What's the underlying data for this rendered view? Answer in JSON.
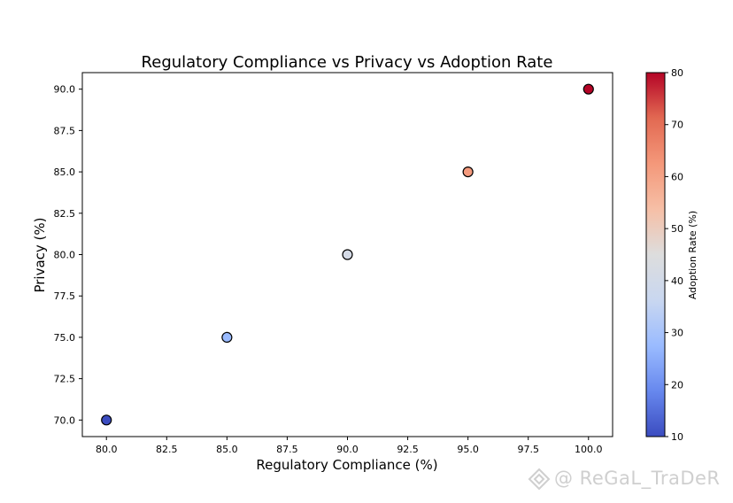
{
  "chart_data": {
    "type": "scatter",
    "title": "Regulatory Compliance vs Privacy vs Adoption Rate",
    "xlabel": "Regulatory Compliance (%)",
    "ylabel": "Privacy (%)",
    "xlim": [
      79.0,
      101.0
    ],
    "ylim": [
      69.0,
      91.0
    ],
    "xticks": [
      80.0,
      82.5,
      85.0,
      87.5,
      90.0,
      92.5,
      95.0,
      97.5,
      100.0
    ],
    "yticks": [
      70.0,
      72.5,
      75.0,
      77.5,
      80.0,
      82.5,
      85.0,
      87.5,
      90.0
    ],
    "points": [
      {
        "x": 80,
        "y": 70,
        "adoption": 10
      },
      {
        "x": 85,
        "y": 75,
        "adoption": 27.5
      },
      {
        "x": 90,
        "y": 80,
        "adoption": 41
      },
      {
        "x": 95,
        "y": 85,
        "adoption": 62
      },
      {
        "x": 100,
        "y": 90,
        "adoption": 80
      }
    ],
    "colorbar": {
      "label": "Adoption Rate (%)",
      "range": [
        10,
        80
      ],
      "ticks": [
        10,
        20,
        30,
        40,
        50,
        60,
        70,
        80
      ],
      "colormap": "coolwarm",
      "stops": [
        "#3b4cc0",
        "#6788ee",
        "#9abbff",
        "#c9d7f0",
        "#dddddd",
        "#f6bfa6",
        "#f4987a",
        "#e26952",
        "#b40426"
      ]
    },
    "grid": false
  },
  "watermark": {
    "text": "@ ReGaL_TraDeR"
  }
}
